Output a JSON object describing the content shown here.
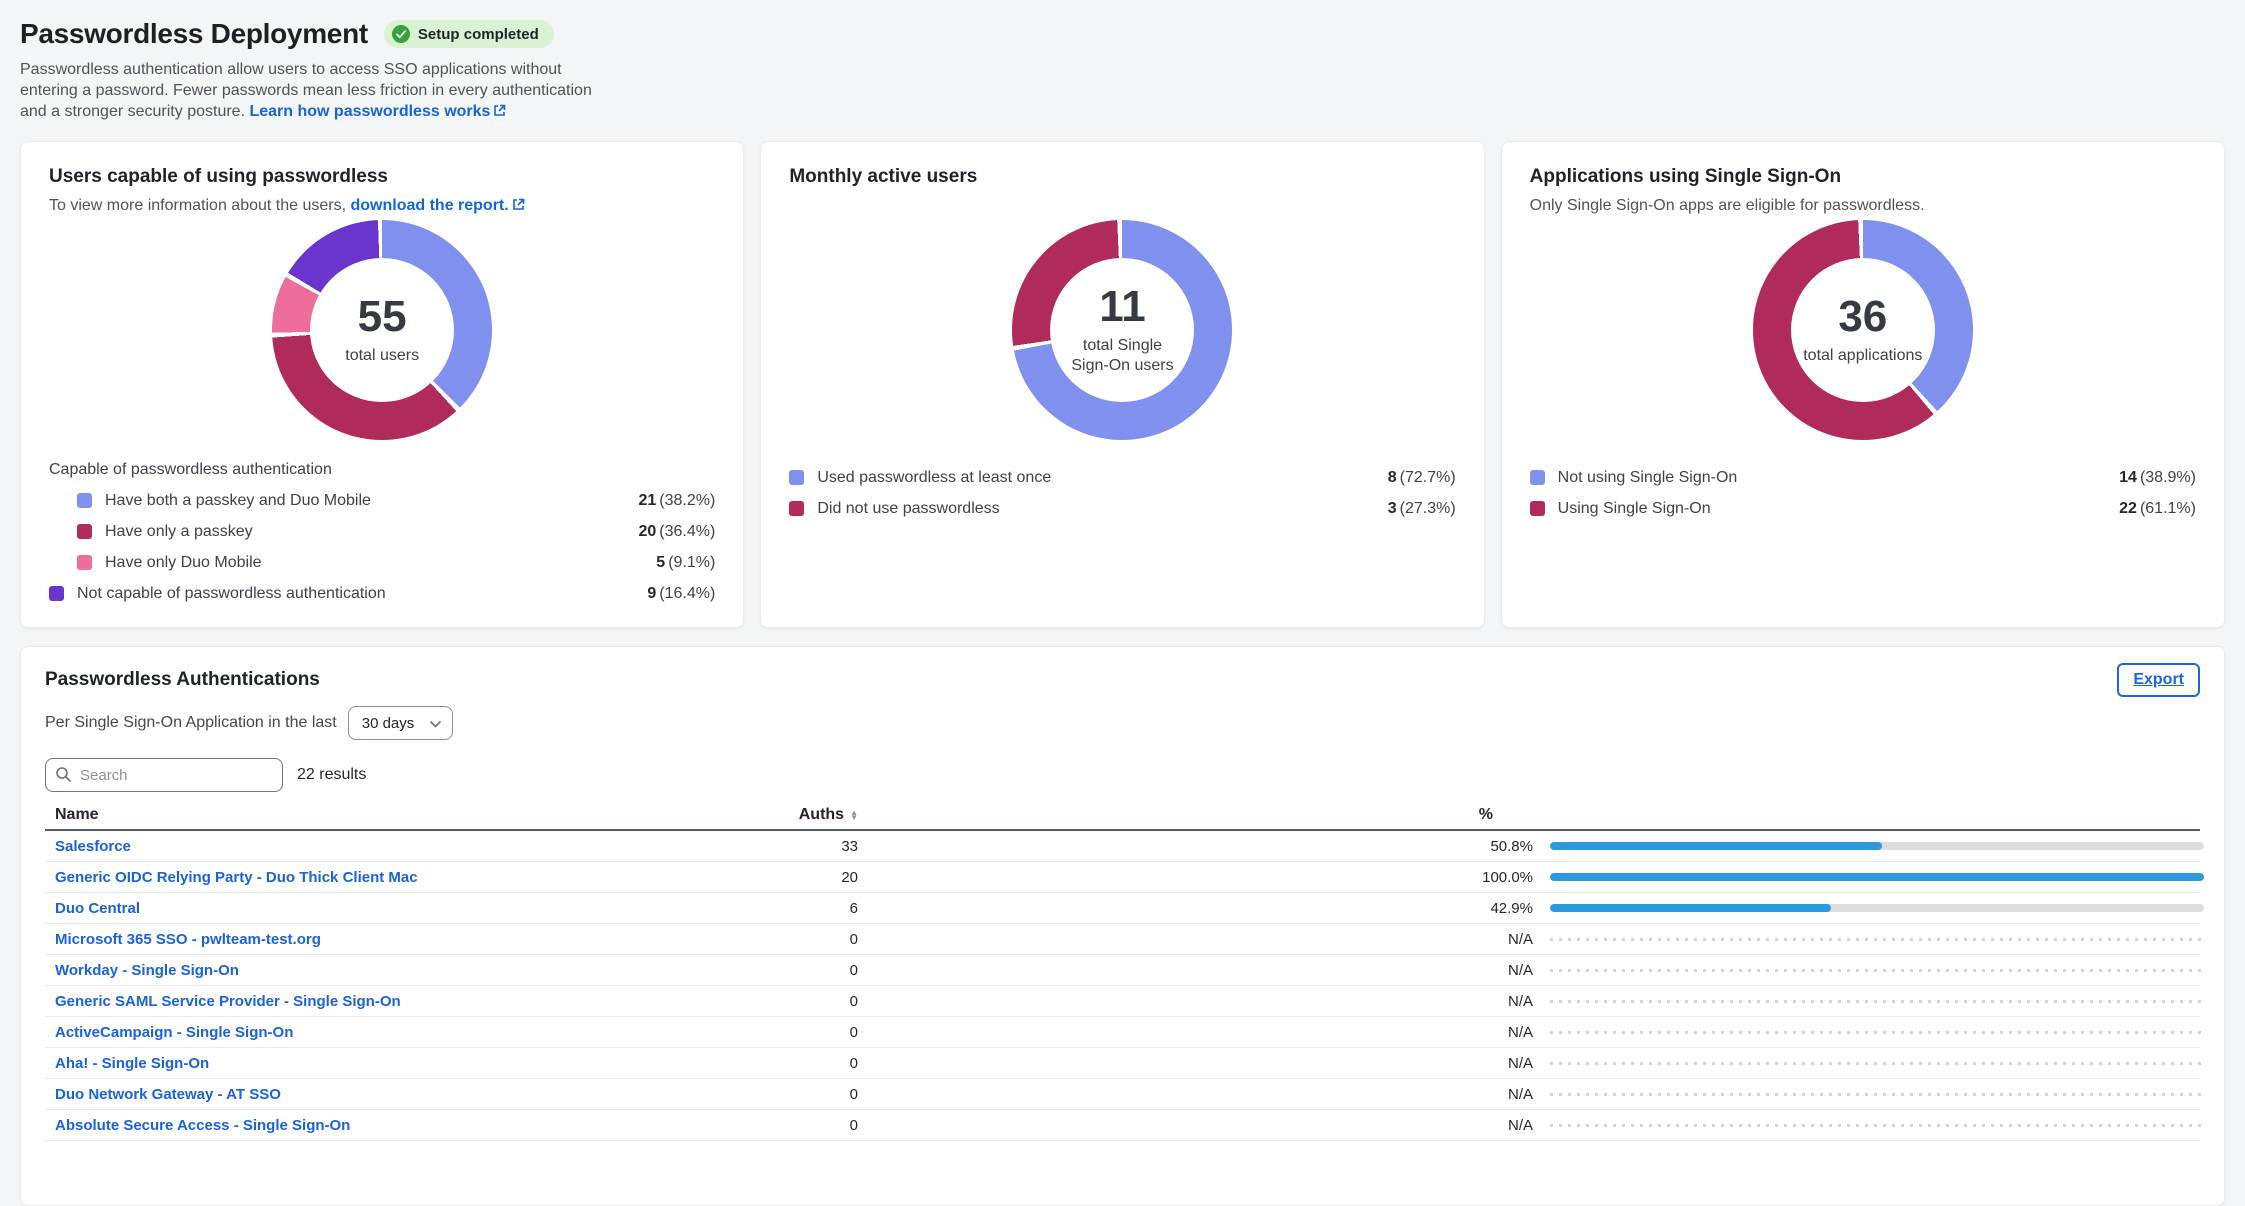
{
  "colors": {
    "periwinkle": "#8090ee",
    "maroon": "#b02a5c",
    "pink": "#ee6d9a",
    "purple": "#6a35cc",
    "bar_blue": "#2a9add",
    "link_blue": "#1665d8",
    "badge_green_bg": "#d9f2d2",
    "badge_green_icon": "#35a33a"
  },
  "page": {
    "title": "Passwordless Deployment",
    "badge_label": "Setup completed",
    "description": "Passwordless authentication allow users to access SSO applications without entering a password. Fewer passwords mean less friction in every authentication and a stronger security posture.",
    "link_label": "Learn how passwordless works"
  },
  "cards": [
    {
      "title": "Users capable of using passwordless",
      "subtitle_prefix": "To view more information about the users,",
      "subtitle_link": "download the report.",
      "donut": {
        "center_value": "55",
        "center_label": "total users",
        "segments": [
          {
            "name": "Have both a passkey and Duo Mobile",
            "pct": 38.2,
            "color": "#8090ee"
          },
          {
            "name": "Have only a passkey",
            "pct": 36.4,
            "color": "#b02a5c"
          },
          {
            "name": "Have only Duo Mobile",
            "pct": 9.1,
            "color": "#ee6d9a"
          },
          {
            "name": "Not capable of passwordless authentication",
            "pct": 16.4,
            "color": "#6a35cc"
          }
        ]
      },
      "legend_group": "Capable of passwordless authentication",
      "legend": [
        {
          "label": "Have both a passkey and Duo Mobile",
          "value": "21",
          "pct": "(38.2%)",
          "color": "#8090ee",
          "indent": true
        },
        {
          "label": "Have only a passkey",
          "value": "20",
          "pct": "(36.4%)",
          "color": "#b02a5c",
          "indent": true
        },
        {
          "label": "Have only Duo Mobile",
          "value": "5",
          "pct": "(9.1%)",
          "color": "#ee6d9a",
          "indent": true
        },
        {
          "label": "Not capable of passwordless authentication",
          "value": "9",
          "pct": "(16.4%)",
          "color": "#6a35cc",
          "indent": false
        }
      ]
    },
    {
      "title": "Monthly active users",
      "subtitle_prefix": "",
      "subtitle_link": "",
      "donut": {
        "center_value": "11",
        "center_label": "total Single\nSign-On users",
        "segments": [
          {
            "name": "Used passwordless at least once",
            "pct": 72.7,
            "color": "#8090ee"
          },
          {
            "name": "Did not use passwordless",
            "pct": 27.3,
            "color": "#b02a5c"
          }
        ]
      },
      "legend_group": "",
      "legend": [
        {
          "label": "Used passwordless at least once",
          "value": "8",
          "pct": "(72.7%)",
          "color": "#8090ee",
          "indent": false
        },
        {
          "label": "Did not use passwordless",
          "value": "3",
          "pct": "(27.3%)",
          "color": "#b02a5c",
          "indent": false
        }
      ]
    },
    {
      "title": "Applications using Single Sign-On",
      "subtitle_prefix": "Only Single Sign-On apps are eligible for passwordless.",
      "subtitle_link": "",
      "donut": {
        "center_value": "36",
        "center_label": "total applications",
        "segments": [
          {
            "name": "Not using Single Sign-On",
            "pct": 38.9,
            "color": "#8090ee"
          },
          {
            "name": "Using Single Sign-On",
            "pct": 61.1,
            "color": "#b02a5c"
          }
        ]
      },
      "legend_group": "",
      "legend": [
        {
          "label": "Not using Single Sign-On",
          "value": "14",
          "pct": "(38.9%)",
          "color": "#8090ee",
          "indent": false
        },
        {
          "label": "Using Single Sign-On",
          "value": "22",
          "pct": "(61.1%)",
          "color": "#b02a5c",
          "indent": false
        }
      ]
    }
  ],
  "section": {
    "title": "Passwordless Authentications",
    "export_label": "Export",
    "filter_prefix": "Per Single Sign-On Application in the last",
    "filter_value": "30 days",
    "search_placeholder": "Search",
    "results": "22 results"
  },
  "table": {
    "columns": {
      "name": "Name",
      "auths": "Auths",
      "pct": "%"
    },
    "rows": [
      {
        "name": "Salesforce",
        "auths": "33",
        "pct": "50.8%",
        "bar": 50.8
      },
      {
        "name": "Generic OIDC Relying Party - Duo Thick Client Mac",
        "auths": "20",
        "pct": "100.0%",
        "bar": 100
      },
      {
        "name": "Duo Central",
        "auths": "6",
        "pct": "42.9%",
        "bar": 42.9
      },
      {
        "name": "Microsoft 365 SSO - pwlteam-test.org",
        "auths": "0",
        "pct": "N/A",
        "bar": null
      },
      {
        "name": "Workday - Single Sign-On",
        "auths": "0",
        "pct": "N/A",
        "bar": null
      },
      {
        "name": "Generic SAML Service Provider - Single Sign-On",
        "auths": "0",
        "pct": "N/A",
        "bar": null
      },
      {
        "name": "ActiveCampaign - Single Sign-On",
        "auths": "0",
        "pct": "N/A",
        "bar": null
      },
      {
        "name": "Aha! - Single Sign-On",
        "auths": "0",
        "pct": "N/A",
        "bar": null
      },
      {
        "name": "Duo Network Gateway - AT SSO",
        "auths": "0",
        "pct": "N/A",
        "bar": null
      },
      {
        "name": "Absolute Secure Access - Single Sign-On",
        "auths": "0",
        "pct": "N/A",
        "bar": null
      }
    ]
  }
}
